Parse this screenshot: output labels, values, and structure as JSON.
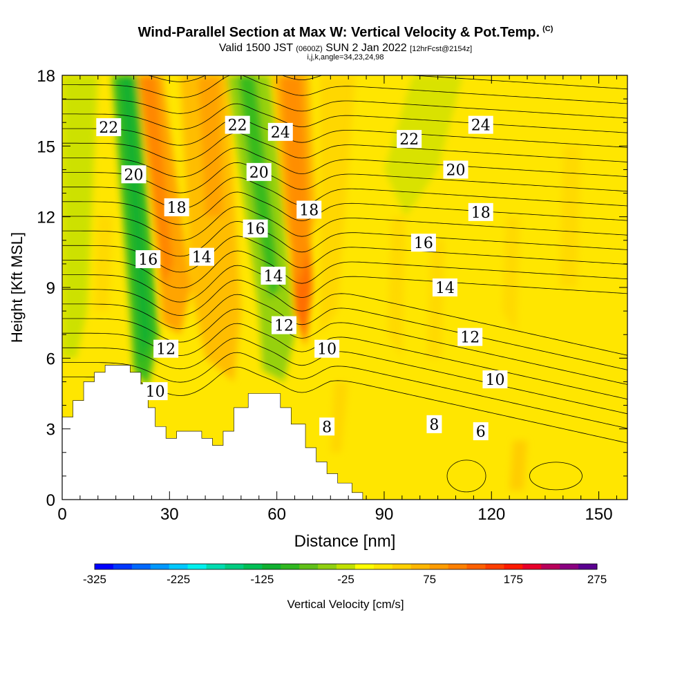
{
  "header": {
    "title": "Wind-Parallel Section at Max W: Vertical Velocity & Pot.Temp.",
    "copyright": "(C)",
    "valid_prefix": "Valid 1500 JST",
    "valid_utc": "(0600Z)",
    "valid_date": "SUN 2 Jan 2022",
    "forecast": "[12hrFcst@2154z]",
    "grid_info": "i,j,k,angle=34,23,24,98"
  },
  "chart_data": {
    "type": "heatmap",
    "xlabel": "Distance [nm]",
    "ylabel": "Height [Kft MSL]",
    "xlim": [
      0,
      158
    ],
    "ylim": [
      0,
      18
    ],
    "x_ticks": [
      0,
      30,
      60,
      90,
      120,
      150
    ],
    "y_ticks": [
      0,
      3,
      6,
      9,
      12,
      15,
      18
    ],
    "contour_labels": [
      {
        "text": "22",
        "x": 13,
        "y": 15.8
      },
      {
        "text": "20",
        "x": 20,
        "y": 13.8
      },
      {
        "text": "18",
        "x": 32,
        "y": 12.4
      },
      {
        "text": "16",
        "x": 24,
        "y": 10.2
      },
      {
        "text": "14",
        "x": 39,
        "y": 10.3
      },
      {
        "text": "12",
        "x": 29,
        "y": 6.4
      },
      {
        "text": "10",
        "x": 26,
        "y": 4.6
      },
      {
        "text": "22",
        "x": 49,
        "y": 15.9
      },
      {
        "text": "24",
        "x": 61,
        "y": 15.6
      },
      {
        "text": "20",
        "x": 55,
        "y": 13.9
      },
      {
        "text": "16",
        "x": 54,
        "y": 11.5
      },
      {
        "text": "18",
        "x": 69,
        "y": 12.3
      },
      {
        "text": "14",
        "x": 59,
        "y": 9.5
      },
      {
        "text": "12",
        "x": 62,
        "y": 7.4
      },
      {
        "text": "10",
        "x": 74,
        "y": 6.4
      },
      {
        "text": "8",
        "x": 74,
        "y": 3.1
      },
      {
        "text": "22",
        "x": 97,
        "y": 15.3
      },
      {
        "text": "24",
        "x": 117,
        "y": 15.9
      },
      {
        "text": "20",
        "x": 110,
        "y": 14.0
      },
      {
        "text": "18",
        "x": 117,
        "y": 12.2
      },
      {
        "text": "16",
        "x": 101,
        "y": 10.9
      },
      {
        "text": "14",
        "x": 107,
        "y": 9.0
      },
      {
        "text": "12",
        "x": 114,
        "y": 6.9
      },
      {
        "text": "10",
        "x": 121,
        "y": 5.1
      },
      {
        "text": "8",
        "x": 104,
        "y": 3.2
      },
      {
        "text": "6",
        "x": 117,
        "y": 2.9
      }
    ],
    "colorbar": {
      "label": "Vertical Velocity [cm/s]",
      "min": -325,
      "max": 275,
      "step": 25,
      "tick_labels": [
        "-325",
        "-225",
        "-125",
        "-25",
        "75",
        "175",
        "275"
      ],
      "colors": [
        "#0000ff",
        "#0036ff",
        "#0068ff",
        "#0098ff",
        "#00c8ff",
        "#00f0ee",
        "#00dcb0",
        "#00cc80",
        "#00bf55",
        "#10b030",
        "#30b820",
        "#60c018",
        "#90d010",
        "#c0e000",
        "#ffff00",
        "#ffe600",
        "#ffd000",
        "#ffb600",
        "#ff9c00",
        "#ff8000",
        "#ff6000",
        "#ff3e00",
        "#ff1a00",
        "#e8002a",
        "#b8005a",
        "#8a0080",
        "#5a0090"
      ]
    },
    "terrain": [
      [
        0,
        3.5
      ],
      [
        3,
        3.5
      ],
      [
        3,
        4.2
      ],
      [
        6,
        4.2
      ],
      [
        6,
        5.0
      ],
      [
        9,
        5.0
      ],
      [
        9,
        5.4
      ],
      [
        12,
        5.4
      ],
      [
        12,
        5.7
      ],
      [
        19,
        5.7
      ],
      [
        19,
        5.4
      ],
      [
        22,
        5.4
      ],
      [
        22,
        4.9
      ],
      [
        24,
        4.9
      ],
      [
        24,
        3.9
      ],
      [
        26,
        3.9
      ],
      [
        26,
        3.1
      ],
      [
        29,
        3.1
      ],
      [
        29,
        2.6
      ],
      [
        32,
        2.6
      ],
      [
        32,
        2.9
      ],
      [
        39,
        2.9
      ],
      [
        39,
        2.6
      ],
      [
        42,
        2.6
      ],
      [
        42,
        2.3
      ],
      [
        45,
        2.3
      ],
      [
        45,
        2.9
      ],
      [
        48,
        2.9
      ],
      [
        48,
        3.9
      ],
      [
        52,
        3.9
      ],
      [
        52,
        4.5
      ],
      [
        61,
        4.5
      ],
      [
        61,
        3.9
      ],
      [
        64,
        3.9
      ],
      [
        64,
        3.2
      ],
      [
        68,
        3.2
      ],
      [
        68,
        2.2
      ],
      [
        71,
        2.2
      ],
      [
        71,
        1.6
      ],
      [
        74,
        1.6
      ],
      [
        74,
        1.1
      ],
      [
        77,
        1.1
      ],
      [
        77,
        0.7
      ],
      [
        81,
        0.7
      ],
      [
        81,
        0.3
      ],
      [
        84,
        0.3
      ],
      [
        84,
        0
      ]
    ]
  }
}
